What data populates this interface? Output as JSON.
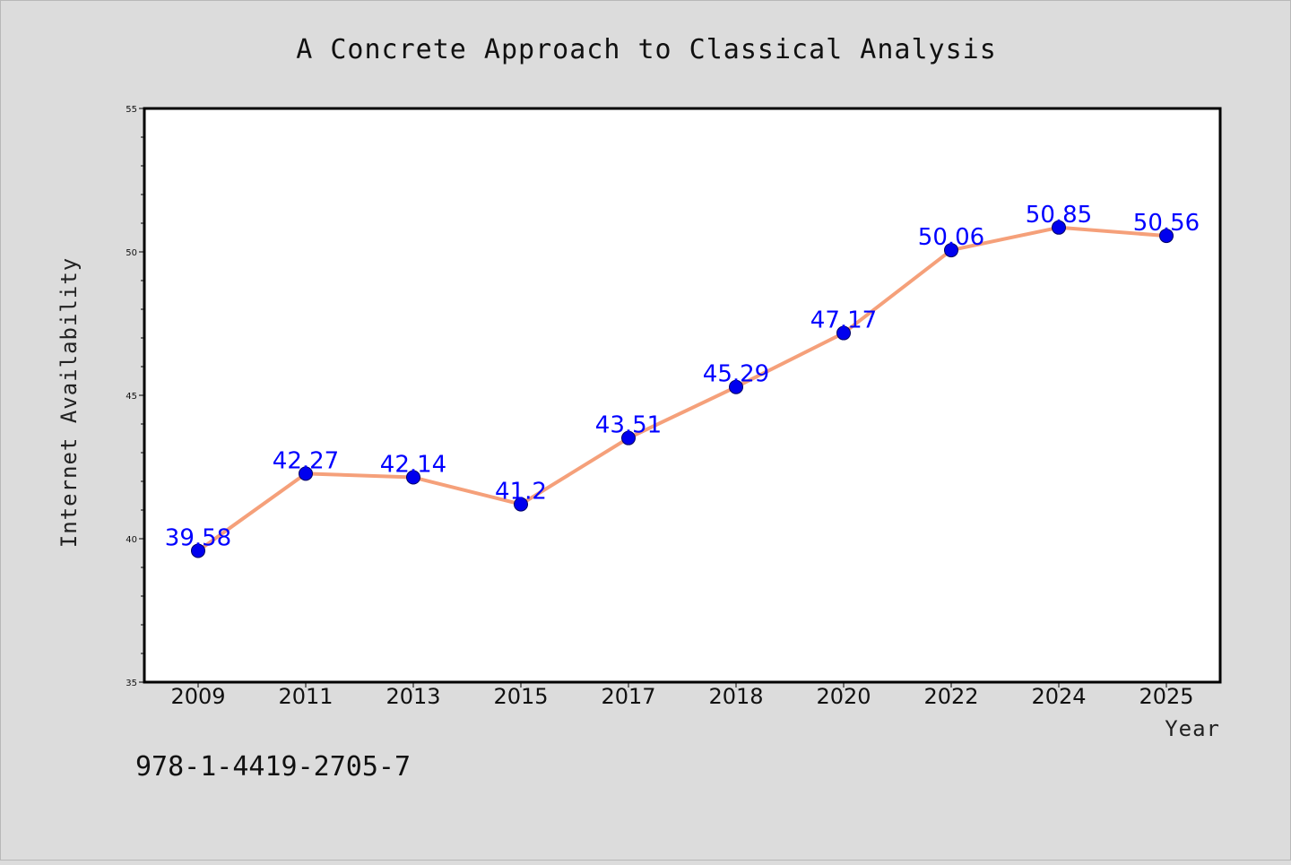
{
  "chart_data": {
    "type": "line",
    "title": "A Concrete Approach to Classical Analysis",
    "xlabel": "Year",
    "ylabel": "Internet Availability",
    "categories": [
      "2009",
      "2011",
      "2013",
      "2015",
      "2017",
      "2018",
      "2020",
      "2022",
      "2024",
      "2025"
    ],
    "series": [
      {
        "values": [
          39.58,
          42.27,
          42.14,
          41.2,
          43.51,
          45.29,
          47.17,
          50.06,
          50.85,
          50.56
        ],
        "labels": [
          "39.58",
          "42.27",
          "42.14",
          "41.2",
          "43.51",
          "45.29",
          "47.17",
          "50.06",
          "50.85",
          "50.56"
        ],
        "line_color": "#f5a07a",
        "marker_color": "#0000ee"
      }
    ],
    "ylim": [
      35,
      55
    ],
    "y_ticks": [
      "35",
      "40",
      "45",
      "50",
      "55"
    ],
    "grid": false,
    "legend": "none"
  },
  "footer": {
    "isbn": "978-1-4419-2705-7"
  },
  "colors": {
    "background": "#dcdcdc",
    "plot_area": "#ffffff",
    "data_label": "#0000ff"
  }
}
